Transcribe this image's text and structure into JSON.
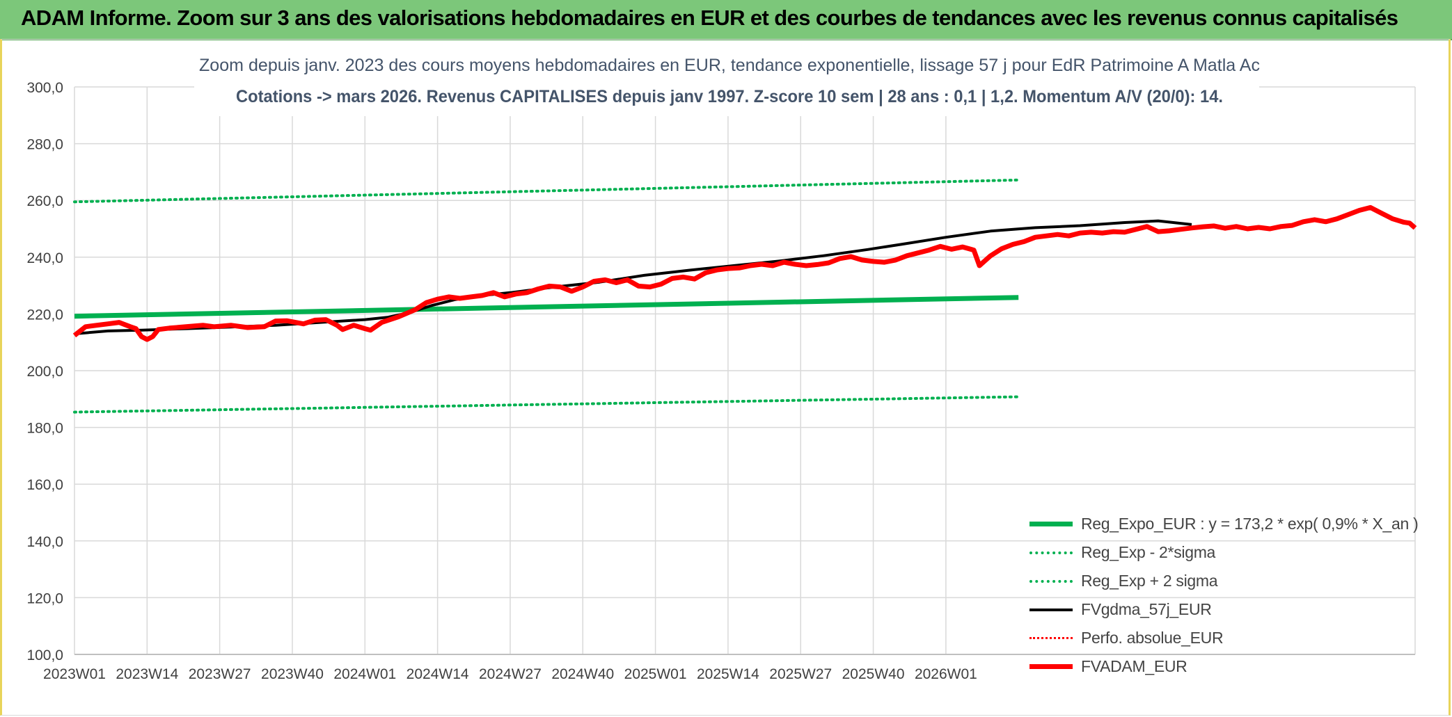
{
  "banner": {
    "title": "ADAM Informe. Zoom sur 3 ans des valorisations hebdomadaires en EUR et des courbes de tendances avec les revenus connus capitalisés"
  },
  "chart_data": {
    "type": "line",
    "title": "Zoom depuis janv. 2023 des cours moyens hebdomadaires en EUR, tendance exponentielle, lissage 57 j pour EdR Patrimoine A Matla Ac",
    "subtitle": "Cotations -> mars 2026. Revenus CAPITALISES depuis janv 1997. Z-score 10 sem | 28 ans : 0,1 | 1,2. Momentum A/V (20/0): 14.",
    "xlabel": "",
    "ylabel": "",
    "ylim": [
      100,
      300
    ],
    "yticks": [
      "300,0",
      "280,0",
      "260,0",
      "240,0",
      "220,0",
      "200,0",
      "180,0",
      "160,0",
      "140,0",
      "120,0",
      "100,0"
    ],
    "xticks": [
      "2023W01",
      "2023W14",
      "2023W27",
      "2023W40",
      "2024W01",
      "2024W14",
      "2024W27",
      "2024W40",
      "2025W01",
      "2025W14",
      "2025W27",
      "2025W40",
      "2026W01"
    ],
    "grid": true,
    "legend_position": "bottom-right",
    "series": [
      {
        "name": "Reg_Expo_EUR : y = 173,2 * exp( 0,9% *  X_an )",
        "color": "#00b050",
        "style": "solid-thick",
        "values": [
          [
            0,
            219.2
          ],
          [
            169,
            225.8
          ]
        ]
      },
      {
        "name": "Reg_Exp - 2*sigma",
        "color": "#00b050",
        "style": "dotted",
        "values": [
          [
            0,
            185.4
          ],
          [
            169,
            190.8
          ]
        ]
      },
      {
        "name": "Reg_Exp + 2 sigma",
        "color": "#00b050",
        "style": "dotted",
        "values": [
          [
            0,
            259.5
          ],
          [
            169,
            267.2
          ]
        ]
      },
      {
        "name": "FVgdma_57j_EUR",
        "color": "#000000",
        "style": "solid",
        "values": [
          [
            0,
            213
          ],
          [
            6,
            214
          ],
          [
            12,
            214.3
          ],
          [
            20,
            214.8
          ],
          [
            28,
            215.4
          ],
          [
            36,
            216
          ],
          [
            44,
            217
          ],
          [
            52,
            218
          ],
          [
            56,
            218.8
          ],
          [
            60,
            220.5
          ],
          [
            64,
            223
          ],
          [
            68,
            225
          ],
          [
            72,
            226.3
          ],
          [
            78,
            227.5
          ],
          [
            86,
            229.5
          ],
          [
            94,
            231.2
          ],
          [
            102,
            233.6
          ],
          [
            110,
            235.4
          ],
          [
            118,
            237
          ],
          [
            126,
            238.6
          ],
          [
            134,
            240.5
          ],
          [
            142,
            242.7
          ],
          [
            148,
            244.5
          ],
          [
            156,
            247
          ],
          [
            164,
            249.2
          ],
          [
            172,
            250.4
          ],
          [
            180,
            251.1
          ],
          [
            188,
            252.2
          ],
          [
            194,
            252.8
          ],
          [
            200,
            251.5
          ]
        ]
      },
      {
        "name": "Perfo. absolue_EUR",
        "color": "#ff0000",
        "style": "dotted",
        "values": []
      },
      {
        "name": "FVADAM_EUR",
        "color": "#ff0000",
        "style": "solid-thick",
        "values": [
          [
            0,
            212.4
          ],
          [
            2,
            215.5
          ],
          [
            4,
            216
          ],
          [
            6,
            216.5
          ],
          [
            8,
            217
          ],
          [
            10,
            215.5
          ],
          [
            11,
            214.8
          ],
          [
            12,
            212
          ],
          [
            13,
            211
          ],
          [
            14,
            212
          ],
          [
            15,
            214.5
          ],
          [
            17,
            215
          ],
          [
            20,
            215.5
          ],
          [
            23,
            216
          ],
          [
            25,
            215.5
          ],
          [
            28,
            216
          ],
          [
            31,
            215.2
          ],
          [
            34,
            215.5
          ],
          [
            36,
            217.5
          ],
          [
            38,
            217.6
          ],
          [
            41,
            216.5
          ],
          [
            43,
            217.8
          ],
          [
            45,
            218
          ],
          [
            47,
            216
          ],
          [
            48,
            214.5
          ],
          [
            50,
            216
          ],
          [
            52,
            214.8
          ],
          [
            53,
            214.3
          ],
          [
            55,
            217
          ],
          [
            58,
            219
          ],
          [
            61,
            221.5
          ],
          [
            63,
            224
          ],
          [
            65,
            225.2
          ],
          [
            67,
            226
          ],
          [
            69,
            225.5
          ],
          [
            71,
            226
          ],
          [
            73,
            226.5
          ],
          [
            75,
            227.5
          ],
          [
            77,
            226
          ],
          [
            79,
            227
          ],
          [
            81,
            227.5
          ],
          [
            83,
            228.8
          ],
          [
            85,
            229.8
          ],
          [
            87,
            229.5
          ],
          [
            89,
            228
          ],
          [
            91,
            229.5
          ],
          [
            93,
            231.5
          ],
          [
            95,
            232
          ],
          [
            97,
            231
          ],
          [
            99,
            232
          ],
          [
            101,
            229.8
          ],
          [
            103,
            229.5
          ],
          [
            105,
            230.5
          ],
          [
            107,
            232.5
          ],
          [
            109,
            233
          ],
          [
            111,
            232.3
          ],
          [
            113,
            234.5
          ],
          [
            115,
            235.5
          ],
          [
            117,
            236
          ],
          [
            119,
            236.2
          ],
          [
            121,
            237
          ],
          [
            123,
            237.5
          ],
          [
            125,
            237
          ],
          [
            127,
            238.2
          ],
          [
            129,
            237.5
          ],
          [
            131,
            237
          ],
          [
            133,
            237.4
          ],
          [
            135,
            238
          ],
          [
            137,
            239.5
          ],
          [
            139,
            240.2
          ],
          [
            141,
            239
          ],
          [
            143,
            238.5
          ],
          [
            145,
            238.2
          ],
          [
            147,
            239
          ],
          [
            149,
            240.5
          ],
          [
            151,
            241.5
          ],
          [
            153,
            242.5
          ],
          [
            155,
            243.8
          ],
          [
            157,
            242.8
          ],
          [
            159,
            243.6
          ],
          [
            161,
            242.5
          ],
          [
            162,
            237
          ],
          [
            164,
            240.5
          ],
          [
            166,
            243
          ],
          [
            168,
            244.5
          ],
          [
            170,
            245.5
          ],
          [
            172,
            247
          ],
          [
            174,
            247.5
          ],
          [
            176,
            248
          ],
          [
            178,
            247.5
          ],
          [
            180,
            248.5
          ],
          [
            182,
            248.8
          ],
          [
            184,
            248.5
          ],
          [
            186,
            249
          ],
          [
            188,
            248.8
          ],
          [
            190,
            249.8
          ],
          [
            192,
            250.8
          ],
          [
            194,
            249
          ],
          [
            196,
            249.3
          ],
          [
            198,
            249.8
          ],
          [
            200,
            250.3
          ],
          [
            202,
            250.7
          ],
          [
            204,
            251
          ],
          [
            206,
            250.2
          ],
          [
            208,
            250.8
          ],
          [
            210,
            250
          ],
          [
            212,
            250.5
          ],
          [
            214,
            250
          ],
          [
            216,
            250.8
          ],
          [
            218,
            251.2
          ],
          [
            220,
            252.5
          ],
          [
            222,
            253.2
          ],
          [
            224,
            252.5
          ],
          [
            226,
            253.5
          ],
          [
            228,
            255
          ],
          [
            230,
            256.5
          ],
          [
            232,
            257.5
          ],
          [
            234,
            255.5
          ],
          [
            236,
            253.5
          ],
          [
            238,
            252.3
          ],
          [
            239,
            252
          ],
          [
            240,
            250.3
          ]
        ]
      }
    ]
  }
}
